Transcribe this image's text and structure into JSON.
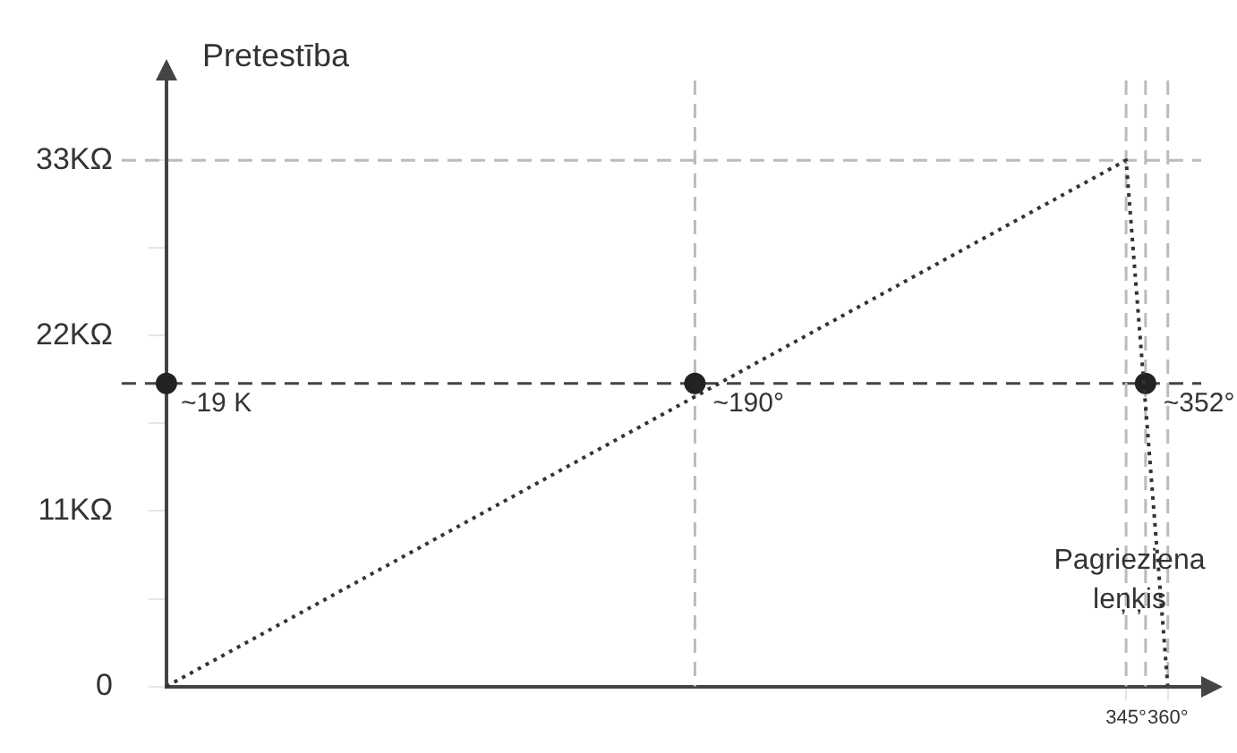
{
  "chart_data": {
    "type": "line",
    "xlabel": "Pagrieziena leņķis",
    "ylabel": "Pretestība",
    "xlim": [
      0,
      372
    ],
    "ylim": [
      0,
      38
    ],
    "xticks": [
      {
        "value": 345,
        "label": "345°"
      },
      {
        "value": 360,
        "label": "360°"
      }
    ],
    "yticks": [
      {
        "value": 0,
        "label": "0"
      },
      {
        "value": 5.5,
        "label": null
      },
      {
        "value": 11,
        "label": "11KΩ"
      },
      {
        "value": 16.5,
        "label": null
      },
      {
        "value": 22,
        "label": "22KΩ"
      },
      {
        "value": 27.5,
        "label": null
      },
      {
        "value": 33,
        "label": "33KΩ"
      }
    ],
    "series": [
      {
        "type": "line",
        "x": [
          0,
          345,
          360
        ],
        "values": [
          0,
          33,
          0
        ],
        "color": "#333333",
        "line_style": "dotted",
        "marker": "none"
      },
      {
        "type": "scatter",
        "x": [
          0,
          190,
          352
        ],
        "values": [
          19,
          19,
          19
        ],
        "color": "#222222",
        "marker": "circle"
      }
    ],
    "ref_lines": [
      {
        "axis": "y",
        "value": 19,
        "label": "~19 K",
        "color": "#444444",
        "line_style": "dashed"
      },
      {
        "axis": "y",
        "value": 33,
        "color": "#bbbbbb",
        "line_style": "dashed"
      },
      {
        "axis": "x",
        "value": 190,
        "color": "#bbbbbb",
        "line_style": "dashed"
      },
      {
        "axis": "x",
        "value": 345,
        "color": "#bbbbbb",
        "line_style": "dashed"
      },
      {
        "axis": "x",
        "value": 352,
        "color": "#bbbbbb",
        "line_style": "dashed"
      },
      {
        "axis": "x",
        "value": 360,
        "color": "#bbbbbb",
        "line_style": "dashed"
      }
    ],
    "annotations": [
      {
        "text": "~190°",
        "x": 190,
        "y": 19
      },
      {
        "text": "~352°",
        "x": 352,
        "y": 19
      }
    ],
    "grid": false,
    "legend": false
  }
}
